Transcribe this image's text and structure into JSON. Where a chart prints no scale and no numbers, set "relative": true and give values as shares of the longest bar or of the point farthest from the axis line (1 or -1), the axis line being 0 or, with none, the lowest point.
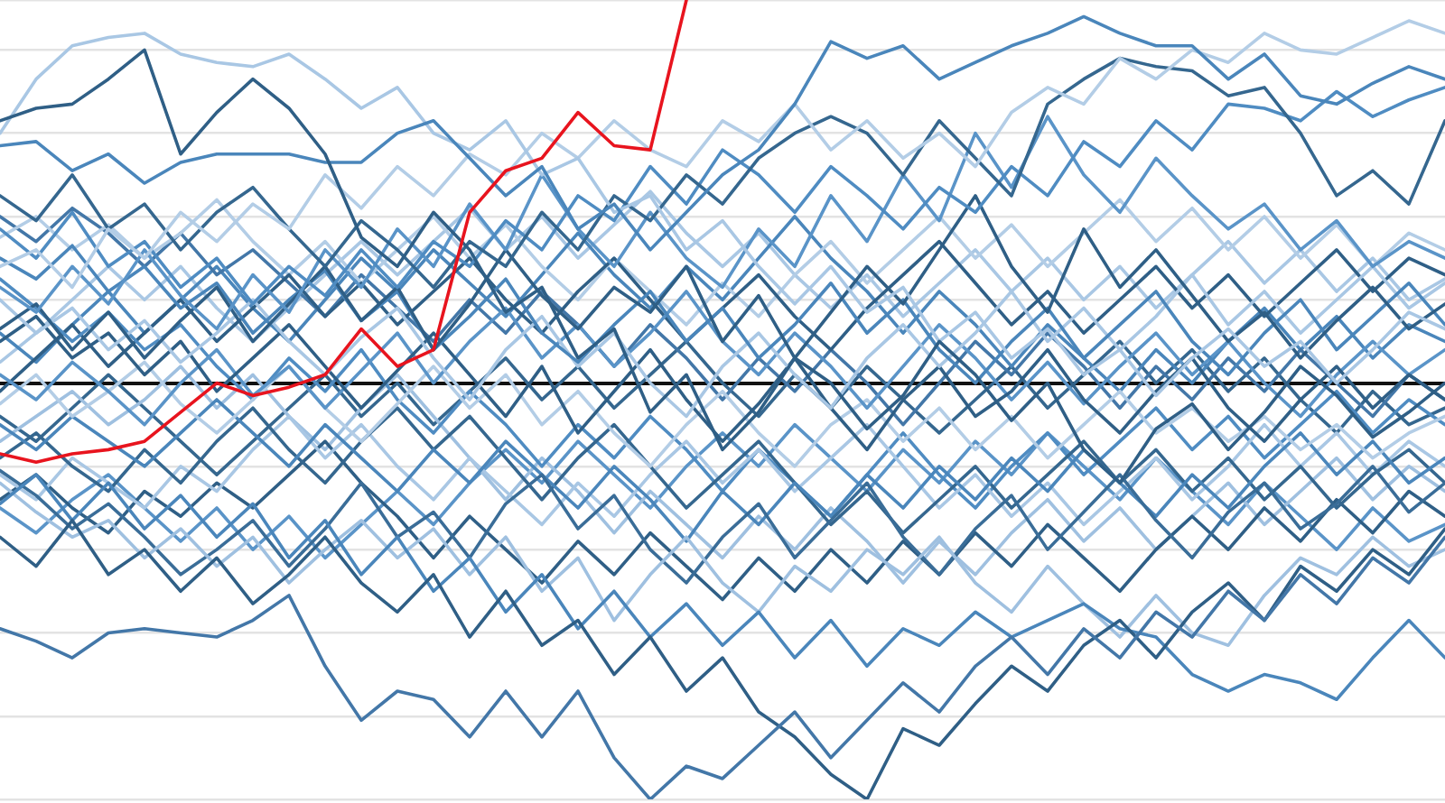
{
  "chart_data": {
    "type": "line",
    "relative": true,
    "marker": "none",
    "grid": "y",
    "categories": [
      null,
      null,
      null,
      null,
      null,
      null,
      null,
      null,
      null,
      null,
      null,
      null,
      null,
      null,
      null,
      null,
      null,
      null,
      null,
      null,
      null,
      null,
      null,
      null,
      null,
      null,
      null,
      null,
      null,
      null,
      null,
      null,
      null,
      null,
      null,
      null,
      null,
      null,
      null,
      null,
      null
    ],
    "series": [
      {
        "color": "#e8141e",
        "values": [
          -0.17,
          -0.19,
          -0.17,
          -0.16,
          -0.14,
          -0.07,
          0.0,
          -0.03,
          -0.01,
          0.02,
          0.13,
          0.04,
          0.08,
          0.41,
          0.51,
          0.54,
          0.65,
          0.57,
          0.56,
          0.92,
          null,
          null,
          null,
          null,
          null,
          null,
          null,
          null,
          null,
          null,
          null,
          null,
          null,
          null,
          null,
          null,
          null,
          null,
          null,
          null,
          null
        ]
      },
      {
        "color": "#2f5f86",
        "values": [
          0.63,
          0.66,
          0.67,
          0.73,
          0.8,
          0.55,
          0.65,
          0.73,
          0.66,
          0.55,
          0.35,
          0.28,
          0.41,
          0.32,
          0.17,
          0.23,
          0.06,
          0.13,
          -0.07,
          0.02,
          -0.16,
          -0.07,
          0.06,
          0.0,
          -0.11,
          -0.03,
          0.1,
          0.02,
          -0.09,
          0.0,
          -0.16,
          -0.24,
          -0.11,
          -0.05,
          -0.16,
          -0.07,
          0.04,
          -0.03,
          -0.13,
          -0.07,
          0.0
        ]
      },
      {
        "color": "#4a86bb",
        "values": [
          0.57,
          0.58,
          0.51,
          0.55,
          0.48,
          0.53,
          0.55,
          0.55,
          0.55,
          0.53,
          0.53,
          0.6,
          0.63,
          0.54,
          0.45,
          0.52,
          0.37,
          0.43,
          0.32,
          0.41,
          0.5,
          0.56,
          0.67,
          0.82,
          0.78,
          0.81,
          0.73,
          0.77,
          0.81,
          0.84,
          0.88,
          0.84,
          0.81,
          0.81,
          0.73,
          0.79,
          0.69,
          0.67,
          0.72,
          0.76,
          0.73
        ]
      },
      {
        "color": "#a9c7e4",
        "values": [
          0.6,
          0.73,
          0.81,
          0.83,
          0.84,
          0.79,
          0.77,
          0.76,
          0.79,
          0.73,
          0.66,
          0.71,
          0.6,
          0.56,
          0.63,
          0.5,
          0.54,
          0.41,
          0.45,
          0.32,
          0.39,
          0.28,
          0.19,
          0.28,
          0.17,
          0.23,
          0.1,
          0.17,
          0.06,
          0.13,
          0.02,
          0.08,
          -0.03,
          0.06,
          0.13,
          0.04,
          0.1,
          0.0,
          0.08,
          0.17,
          0.13
        ]
      },
      {
        "color": "#b3cde6",
        "values": [
          0.28,
          0.32,
          0.23,
          0.37,
          0.3,
          0.41,
          0.34,
          0.43,
          0.37,
          0.5,
          0.42,
          0.52,
          0.45,
          0.55,
          0.5,
          0.6,
          0.54,
          0.63,
          0.56,
          0.52,
          0.63,
          0.58,
          0.67,
          0.56,
          0.63,
          0.54,
          0.6,
          0.52,
          0.65,
          0.71,
          0.67,
          0.78,
          0.73,
          0.8,
          0.77,
          0.84,
          0.8,
          0.79,
          0.83,
          0.87,
          0.84
        ]
      },
      {
        "color": "#35678f",
        "values": [
          0.45,
          0.39,
          0.5,
          0.37,
          0.43,
          0.32,
          0.41,
          0.47,
          0.37,
          0.28,
          0.39,
          0.32,
          0.23,
          0.34,
          0.28,
          0.41,
          0.32,
          0.45,
          0.39,
          0.5,
          0.43,
          0.54,
          0.6,
          0.64,
          0.6,
          0.5,
          0.63,
          0.54,
          0.45,
          0.67,
          0.73,
          0.78,
          0.76,
          0.75,
          0.69,
          0.71,
          0.6,
          0.45,
          0.51,
          0.43,
          0.63
        ]
      },
      {
        "color": "#4f8cc2",
        "values": [
          0.37,
          0.3,
          0.41,
          0.28,
          0.34,
          0.23,
          0.3,
          0.19,
          0.28,
          0.21,
          0.32,
          0.23,
          0.34,
          0.28,
          0.39,
          0.32,
          0.45,
          0.39,
          0.52,
          0.43,
          0.56,
          0.5,
          0.41,
          0.52,
          0.45,
          0.37,
          0.47,
          0.41,
          0.52,
          0.45,
          0.58,
          0.52,
          0.63,
          0.56,
          0.67,
          0.66,
          0.63,
          0.7,
          0.64,
          0.68,
          0.71
        ]
      },
      {
        "color": "#5a94c8",
        "values": [
          0.23,
          0.17,
          0.28,
          0.19,
          0.32,
          0.21,
          0.13,
          0.26,
          0.17,
          0.32,
          0.23,
          0.37,
          0.28,
          0.43,
          0.32,
          0.5,
          0.37,
          0.28,
          0.41,
          0.3,
          0.23,
          0.37,
          0.28,
          0.45,
          0.34,
          0.5,
          0.39,
          0.6,
          0.47,
          0.64,
          0.5,
          0.41,
          0.54,
          0.45,
          0.37,
          0.43,
          0.32,
          0.39,
          0.28,
          0.34,
          0.3
        ]
      },
      {
        "color": "#2f5f86",
        "values": [
          0.13,
          0.19,
          0.08,
          0.17,
          0.06,
          0.15,
          0.23,
          0.1,
          0.19,
          0.28,
          0.15,
          0.23,
          0.08,
          0.19,
          0.32,
          0.21,
          0.13,
          0.23,
          0.17,
          0.28,
          0.1,
          0.21,
          0.06,
          0.17,
          0.28,
          0.19,
          0.32,
          0.45,
          0.28,
          0.17,
          0.37,
          0.23,
          0.32,
          0.21,
          0.1,
          0.17,
          0.06,
          0.15,
          0.23,
          0.13,
          0.19
        ]
      },
      {
        "color": "#4377a8",
        "values": [
          -0.59,
          -0.62,
          -0.66,
          -0.6,
          -0.59,
          -0.6,
          -0.61,
          -0.57,
          -0.51,
          -0.68,
          -0.81,
          -0.74,
          -0.76,
          -0.85,
          -0.74,
          -0.85,
          -0.74,
          -0.9,
          -1,
          -0.92,
          -0.95,
          -0.87,
          -0.79,
          -0.9,
          -0.81,
          -0.72,
          -0.79,
          -0.68,
          -0.61,
          -0.7,
          -0.59,
          -0.66,
          -0.55,
          -0.61,
          -0.5,
          -0.57,
          -0.46,
          -0.53,
          -0.42,
          -0.48,
          -0.37
        ]
      },
      {
        "color": "#2f5f86",
        "values": [
          -0.37,
          -0.44,
          -0.33,
          -0.46,
          -0.4,
          -0.5,
          -0.42,
          -0.53,
          -0.46,
          -0.37,
          -0.48,
          -0.55,
          -0.46,
          -0.61,
          -0.5,
          -0.63,
          -0.57,
          -0.7,
          -0.61,
          -0.74,
          -0.66,
          -0.79,
          -0.85,
          -0.94,
          -1,
          -0.83,
          -0.87,
          -0.77,
          -0.68,
          -0.74,
          -0.63,
          -0.57,
          -0.66,
          -0.55,
          -0.48,
          -0.57,
          -0.44,
          -0.5,
          -0.4,
          -0.46,
          -0.35
        ]
      },
      {
        "color": "#4a86bb",
        "values": [
          -0.29,
          -0.22,
          -0.33,
          -0.24,
          -0.35,
          -0.27,
          -0.37,
          -0.29,
          -0.42,
          -0.33,
          -0.46,
          -0.37,
          -0.5,
          -0.42,
          -0.55,
          -0.46,
          -0.59,
          -0.5,
          -0.61,
          -0.53,
          -0.63,
          -0.55,
          -0.66,
          -0.57,
          -0.68,
          -0.59,
          -0.63,
          -0.55,
          -0.61,
          -0.57,
          -0.53,
          -0.59,
          -0.61,
          -0.7,
          -0.74,
          -0.7,
          -0.72,
          -0.76,
          -0.66,
          -0.57,
          -0.66
        ]
      },
      {
        "color": "#9fc0e0",
        "values": [
          -0.24,
          -0.31,
          -0.37,
          -0.33,
          -0.42,
          -0.35,
          -0.44,
          -0.37,
          -0.48,
          -0.4,
          -0.33,
          -0.42,
          -0.35,
          -0.46,
          -0.37,
          -0.5,
          -0.42,
          -0.57,
          -0.46,
          -0.37,
          -0.48,
          -0.55,
          -0.44,
          -0.5,
          -0.4,
          -0.46,
          -0.37,
          -0.48,
          -0.55,
          -0.44,
          -0.53,
          -0.61,
          -0.51,
          -0.6,
          -0.63,
          -0.51,
          -0.42,
          -0.46,
          -0.37,
          -0.44,
          -0.4
        ]
      },
      {
        "color": "#3a6d98",
        "values": [
          -0.21,
          -0.27,
          -0.35,
          -0.29,
          -0.37,
          -0.46,
          -0.4,
          -0.33,
          -0.44,
          -0.35,
          -0.24,
          -0.37,
          -0.31,
          -0.42,
          -0.29,
          -0.22,
          -0.35,
          -0.27,
          -0.4,
          -0.48,
          -0.37,
          -0.29,
          -0.42,
          -0.33,
          -0.24,
          -0.37,
          -0.46,
          -0.35,
          -0.27,
          -0.4,
          -0.31,
          -0.22,
          -0.33,
          -0.42,
          -0.31,
          -0.24,
          -0.35,
          -0.29,
          -0.2,
          -0.31,
          -0.24
        ]
      },
      {
        "color": "#4a86bb",
        "values": [
          0.3,
          0.25,
          0.33,
          0.22,
          0.28,
          0.18,
          0.24,
          0.12,
          0.2,
          0.27,
          0.15,
          0.22,
          0.08,
          0.16,
          0.25,
          0.12,
          0.05,
          0.14,
          0.22,
          0.1,
          0.18,
          0.06,
          0.14,
          0.24,
          0.12,
          0.2,
          0.08,
          0.0,
          0.1,
          0.18,
          0.06,
          0.14,
          0.22,
          0.1,
          0.02,
          0.12,
          0.2,
          0.08,
          0.16,
          0.24,
          0.14
        ]
      },
      {
        "color": "#a9c7e4",
        "values": [
          0.2,
          0.12,
          0.18,
          0.08,
          0.15,
          0.05,
          0.12,
          0.2,
          0.1,
          0.02,
          0.11,
          0.18,
          0.06,
          -0.04,
          0.08,
          0.16,
          0.04,
          0.12,
          0.0,
          -0.08,
          0.04,
          0.12,
          0.02,
          -0.06,
          0.06,
          0.14,
          0.04,
          0.12,
          0.22,
          0.1,
          0.18,
          0.08,
          0.16,
          0.26,
          0.14,
          0.22,
          0.12,
          0.2,
          0.28,
          0.18,
          0.24
        ]
      },
      {
        "color": "#2f5f86",
        "values": [
          0.1,
          0.16,
          0.06,
          0.12,
          0.02,
          0.1,
          -0.02,
          0.06,
          0.14,
          0.04,
          -0.06,
          0.03,
          0.12,
          0.02,
          -0.08,
          0.04,
          -0.12,
          -0.02,
          0.08,
          -0.04,
          -0.14,
          -0.05,
          0.06,
          -0.06,
          -0.16,
          -0.04,
          0.04,
          -0.08,
          -0.02,
          0.08,
          -0.04,
          -0.12,
          -0.02,
          0.06,
          -0.06,
          -0.14,
          -0.04,
          0.04,
          -0.06,
          0.02,
          -0.04
        ]
      },
      {
        "color": "#5a94c8",
        "values": [
          0.02,
          -0.04,
          0.05,
          -0.02,
          -0.1,
          0.0,
          0.08,
          -0.03,
          0.04,
          -0.06,
          0.03,
          0.12,
          0.0,
          0.1,
          0.18,
          0.06,
          0.14,
          0.04,
          0.12,
          0.22,
          0.1,
          0.02,
          0.12,
          0.04,
          -0.06,
          0.04,
          0.14,
          0.06,
          -0.04,
          0.05,
          -0.05,
          0.04,
          0.12,
          0.02,
          0.1,
          0.0,
          -0.08,
          0.02,
          0.1,
          0.02,
          0.08
        ]
      },
      {
        "color": "#b3cde6",
        "values": [
          -0.05,
          0.02,
          -0.08,
          -0.02,
          0.05,
          -0.05,
          -0.12,
          -0.04,
          0.04,
          -0.06,
          -0.14,
          -0.05,
          0.04,
          -0.06,
          0.02,
          -0.1,
          -0.02,
          -0.12,
          -0.2,
          -0.1,
          -0.02,
          -0.12,
          -0.2,
          -0.1,
          -0.04,
          -0.14,
          -0.06,
          -0.16,
          -0.08,
          -0.18,
          -0.1,
          -0.02,
          -0.12,
          -0.06,
          -0.14,
          -0.08,
          -0.16,
          -0.1,
          -0.18,
          -0.12,
          -0.08
        ]
      },
      {
        "color": "#4a86bb",
        "values": [
          -0.1,
          -0.16,
          -0.08,
          -0.14,
          -0.2,
          -0.12,
          -0.04,
          -0.12,
          -0.2,
          -0.1,
          -0.18,
          -0.26,
          -0.16,
          -0.24,
          -0.14,
          -0.22,
          -0.3,
          -0.2,
          -0.28,
          -0.38,
          -0.26,
          -0.34,
          -0.24,
          -0.32,
          -0.22,
          -0.3,
          -0.2,
          -0.28,
          -0.18,
          -0.26,
          -0.16,
          -0.24,
          -0.32,
          -0.22,
          -0.3,
          -0.2,
          -0.12,
          -0.22,
          -0.14,
          -0.24,
          -0.18
        ]
      },
      {
        "color": "#35678f",
        "values": [
          -0.18,
          -0.12,
          -0.2,
          -0.26,
          -0.16,
          -0.24,
          -0.14,
          -0.06,
          -0.16,
          -0.24,
          -0.14,
          -0.06,
          -0.16,
          -0.08,
          -0.18,
          -0.28,
          -0.18,
          -0.1,
          -0.2,
          -0.3,
          -0.22,
          -0.14,
          -0.24,
          -0.34,
          -0.26,
          -0.36,
          -0.28,
          -0.2,
          -0.3,
          -0.22,
          -0.14,
          -0.24,
          -0.16,
          -0.26,
          -0.18,
          -0.28,
          -0.2,
          -0.3,
          -0.22,
          -0.16,
          -0.24
        ]
      },
      {
        "color": "#a9c7e4",
        "values": [
          -0.22,
          -0.28,
          -0.18,
          -0.24,
          -0.3,
          -0.2,
          -0.26,
          -0.16,
          -0.08,
          -0.18,
          -0.1,
          -0.2,
          -0.28,
          -0.18,
          -0.26,
          -0.34,
          -0.24,
          -0.32,
          -0.22,
          -0.14,
          -0.24,
          -0.16,
          -0.26,
          -0.18,
          -0.1,
          -0.2,
          -0.3,
          -0.22,
          -0.32,
          -0.24,
          -0.34,
          -0.26,
          -0.18,
          -0.28,
          -0.2,
          -0.1,
          -0.2,
          -0.12,
          -0.22,
          -0.14,
          -0.2
        ]
      },
      {
        "color": "#4f8cc2",
        "values": [
          0.25,
          0.18,
          0.1,
          0.17,
          0.08,
          0.14,
          0.04,
          -0.04,
          0.06,
          -0.02,
          0.08,
          -0.04,
          -0.12,
          -0.02,
          -0.1,
          -0.2,
          -0.1,
          -0.18,
          -0.08,
          -0.16,
          -0.26,
          -0.16,
          -0.24,
          -0.32,
          -0.22,
          -0.12,
          -0.22,
          -0.3,
          -0.2,
          -0.12,
          -0.22,
          -0.14,
          -0.06,
          -0.16,
          -0.08,
          -0.18,
          -0.1,
          -0.02,
          -0.12,
          -0.04,
          -0.1
        ]
      },
      {
        "color": "#2f5f86",
        "values": [
          -0.02,
          0.06,
          0.14,
          0.04,
          0.12,
          0.2,
          0.1,
          0.18,
          0.26,
          0.16,
          0.24,
          0.14,
          0.22,
          0.3,
          0.2,
          0.12,
          0.22,
          0.3,
          0.2,
          0.1,
          0.18,
          0.26,
          0.16,
          0.08,
          0.18,
          0.26,
          0.34,
          0.24,
          0.14,
          0.22,
          0.12,
          0.2,
          0.28,
          0.18,
          0.26,
          0.16,
          0.24,
          0.32,
          0.22,
          0.3,
          0.26
        ]
      },
      {
        "color": "#b3cde6",
        "values": [
          0.35,
          0.4,
          0.32,
          0.38,
          0.3,
          0.36,
          0.44,
          0.34,
          0.26,
          0.34,
          0.24,
          0.32,
          0.4,
          0.3,
          0.38,
          0.28,
          0.2,
          0.3,
          0.22,
          0.14,
          0.24,
          0.16,
          0.26,
          0.34,
          0.24,
          0.32,
          0.4,
          0.3,
          0.38,
          0.28,
          0.36,
          0.44,
          0.34,
          0.42,
          0.32,
          0.4,
          0.3,
          0.38,
          0.28,
          0.36,
          0.32
        ]
      },
      {
        "color": "#4377a8",
        "values": [
          0.4,
          0.34,
          0.42,
          0.36,
          0.28,
          0.36,
          0.26,
          0.32,
          0.24,
          0.16,
          0.26,
          0.18,
          0.1,
          0.2,
          0.12,
          0.22,
          0.14,
          0.04,
          0.14,
          0.06,
          -0.04,
          0.06,
          -0.02,
          0.08,
          0.0,
          -0.1,
          0.0,
          0.1,
          0.02,
          0.12,
          0.04,
          -0.06,
          0.04,
          -0.04,
          0.06,
          -0.02,
          0.08,
          0.0,
          -0.08,
          0.02,
          -0.04
        ]
      },
      {
        "color": "#2f5f86",
        "values": [
          -0.28,
          -0.22,
          -0.3,
          -0.36,
          -0.26,
          -0.32,
          -0.24,
          -0.3,
          -0.22,
          -0.14,
          -0.24,
          -0.32,
          -0.42,
          -0.32,
          -0.4,
          -0.48,
          -0.38,
          -0.46,
          -0.36,
          -0.44,
          -0.52,
          -0.42,
          -0.5,
          -0.4,
          -0.48,
          -0.38,
          -0.46,
          -0.36,
          -0.44,
          -0.34,
          -0.42,
          -0.5,
          -0.4,
          -0.32,
          -0.4,
          -0.3,
          -0.38,
          -0.28,
          -0.36,
          -0.26,
          -0.32
        ]
      },
      {
        "color": "#9fc0e0",
        "values": [
          -0.14,
          -0.08,
          -0.02,
          -0.1,
          -0.04,
          0.04,
          -0.06,
          0.02,
          -0.08,
          -0.16,
          -0.06,
          0.02,
          -0.08,
          -0.18,
          -0.28,
          -0.18,
          -0.26,
          -0.36,
          -0.26,
          -0.34,
          -0.42,
          -0.32,
          -0.4,
          -0.3,
          -0.38,
          -0.48,
          -0.38,
          -0.46,
          -0.36,
          -0.28,
          -0.38,
          -0.3,
          -0.4,
          -0.32,
          -0.24,
          -0.34,
          -0.26,
          -0.18,
          -0.28,
          -0.2,
          -0.26
        ]
      },
      {
        "color": "#4a86bb",
        "values": [
          0.12,
          0.05,
          0.14,
          0.22,
          0.12,
          0.2,
          0.28,
          0.18,
          0.1,
          0.2,
          0.3,
          0.22,
          0.32,
          0.24,
          0.16,
          0.26,
          0.36,
          0.26,
          0.18,
          0.28,
          0.2,
          0.3,
          0.4,
          0.3,
          0.22,
          0.12,
          0.22,
          0.14,
          0.04,
          0.14,
          0.06,
          -0.02,
          0.08,
          0.0,
          0.1,
          0.18,
          0.08,
          0.16,
          0.06,
          0.14,
          0.1
        ]
      },
      {
        "color": "#35678f",
        "values": [
          -0.08,
          -0.14,
          -0.06,
          0.02,
          -0.06,
          -0.14,
          -0.22,
          -0.14,
          -0.06,
          0.02,
          -0.08,
          0.0,
          -0.1,
          -0.02,
          0.06,
          -0.04,
          0.04,
          -0.06,
          0.02,
          0.1,
          0.0,
          -0.08,
          0.02,
          -0.06,
          0.04,
          -0.04,
          -0.12,
          -0.04,
          0.04,
          -0.06,
          0.02,
          0.1,
          0.0,
          0.08,
          -0.02,
          0.06,
          -0.04,
          -0.12,
          -0.02,
          -0.1,
          -0.06
        ]
      },
      {
        "color": "#a9c7e4",
        "values": [
          0.05,
          0.12,
          0.2,
          0.28,
          0.2,
          0.28,
          0.18,
          0.1,
          0.18,
          0.26,
          0.34,
          0.26,
          0.34,
          0.42,
          0.32,
          0.4,
          0.3,
          0.38,
          0.46,
          0.36,
          0.28,
          0.36,
          0.26,
          0.18,
          0.26,
          0.16,
          0.24,
          0.32,
          0.22,
          0.3,
          0.2,
          0.28,
          0.18,
          0.26,
          0.34,
          0.24,
          0.32,
          0.22,
          0.3,
          0.2,
          0.25
        ]
      },
      {
        "color": "#5a94c8",
        "values": [
          -0.3,
          -0.36,
          -0.28,
          -0.22,
          -0.3,
          -0.38,
          -0.3,
          -0.4,
          -0.32,
          -0.42,
          -0.34,
          -0.26,
          -0.34,
          -0.24,
          -0.16,
          -0.24,
          -0.14,
          -0.22,
          -0.3,
          -0.2,
          -0.12,
          -0.2,
          -0.1,
          -0.18,
          -0.26,
          -0.16,
          -0.24,
          -0.14,
          -0.22,
          -0.12,
          -0.2,
          -0.28,
          -0.18,
          -0.26,
          -0.34,
          -0.24,
          -0.32,
          -0.4,
          -0.3,
          -0.38,
          -0.34
        ]
      }
    ]
  }
}
